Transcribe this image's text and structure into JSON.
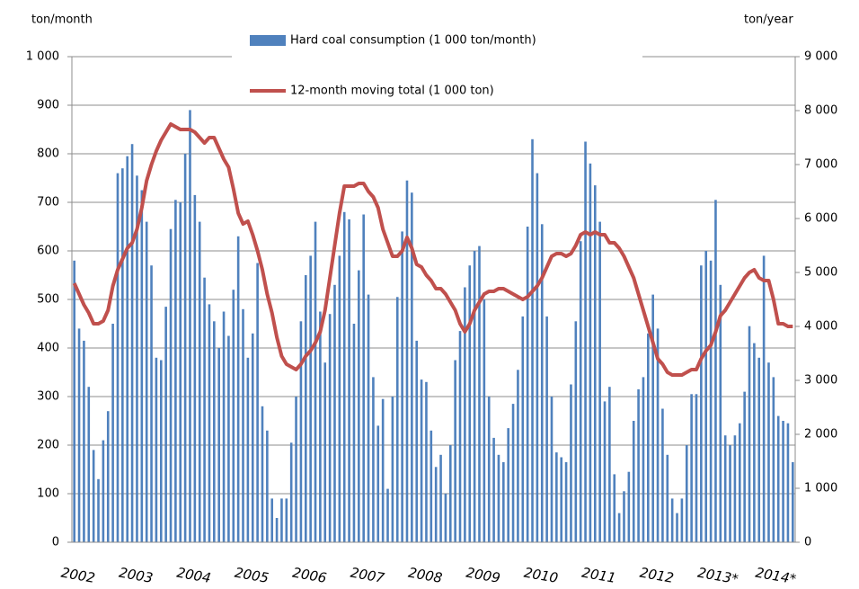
{
  "chart_data": {
    "type": "bar-line",
    "y_label": "ton/month",
    "y2_label": "ton/year",
    "categories": [
      "2002",
      null,
      null,
      null,
      null,
      null,
      null,
      null,
      null,
      null,
      null,
      null,
      "2003",
      null,
      null,
      null,
      null,
      null,
      null,
      null,
      null,
      null,
      null,
      null,
      "2004",
      null,
      null,
      null,
      null,
      null,
      null,
      null,
      null,
      null,
      null,
      null,
      "2005",
      null,
      null,
      null,
      null,
      null,
      null,
      null,
      null,
      null,
      null,
      null,
      "2006",
      null,
      null,
      null,
      null,
      null,
      null,
      null,
      null,
      null,
      null,
      null,
      "2007",
      null,
      null,
      null,
      null,
      null,
      null,
      null,
      null,
      null,
      null,
      null,
      "2008",
      null,
      null,
      null,
      null,
      null,
      null,
      null,
      null,
      null,
      null,
      null,
      "2009",
      null,
      null,
      null,
      null,
      null,
      null,
      null,
      null,
      null,
      null,
      null,
      "2010",
      null,
      null,
      null,
      null,
      null,
      null,
      null,
      null,
      null,
      null,
      null,
      "2011",
      null,
      null,
      null,
      null,
      null,
      null,
      null,
      null,
      null,
      null,
      null,
      "2012",
      null,
      null,
      null,
      null,
      null,
      null,
      null,
      null,
      null,
      null,
      null,
      "2013*",
      null,
      null,
      null,
      null,
      null,
      null,
      null,
      null,
      null,
      null,
      null,
      "2014*",
      null,
      null,
      null,
      null,
      null
    ],
    "series": [
      {
        "name": "Hard coal consumption (1 000 ton/month)",
        "type": "bar",
        "color": "#4f81bd",
        "values": [
          580,
          440,
          415,
          320,
          190,
          130,
          210,
          270,
          450,
          760,
          770,
          795,
          820,
          755,
          725,
          660,
          570,
          380,
          375,
          485,
          645,
          705,
          700,
          800,
          890,
          715,
          660,
          545,
          490,
          455,
          400,
          475,
          425,
          520,
          630,
          480,
          380,
          430,
          575,
          280,
          230,
          90,
          50,
          90,
          90,
          205,
          300,
          455,
          550,
          590,
          660,
          475,
          370,
          470,
          530,
          590,
          680,
          665,
          450,
          560,
          675,
          510,
          340,
          240,
          295,
          110,
          300,
          505,
          640,
          745,
          720,
          415,
          335,
          330,
          230,
          155,
          180,
          100,
          200,
          375,
          435,
          525,
          570,
          600,
          610,
          500,
          300,
          215,
          180,
          165,
          235,
          285,
          355,
          465,
          650,
          830,
          760,
          655,
          465,
          300,
          185,
          175,
          165,
          325,
          455,
          620,
          825,
          780,
          735,
          660,
          290,
          320,
          140,
          60,
          105,
          145,
          250,
          315,
          340,
          430,
          510,
          440,
          275,
          180,
          90,
          60,
          90,
          200,
          305,
          305,
          570,
          600,
          580,
          705,
          530,
          220,
          200,
          220,
          245,
          310,
          445,
          410,
          380,
          590,
          370,
          340,
          260,
          250,
          245,
          165
        ]
      },
      {
        "name": "12-month moving total (1 000 ton)",
        "type": "line",
        "axis": "y2",
        "color": "#c0504d",
        "values": [
          4800,
          4600,
          4400,
          4250,
          4050,
          4050,
          4100,
          4300,
          4750,
          5050,
          5250,
          5450,
          5550,
          5800,
          6200,
          6700,
          7000,
          7250,
          7450,
          7600,
          7750,
          7700,
          7650,
          7650,
          7650,
          7600,
          7500,
          7400,
          7500,
          7500,
          7300,
          7100,
          6950,
          6550,
          6100,
          5900,
          5950,
          5700,
          5400,
          5050,
          4600,
          4250,
          3800,
          3450,
          3300,
          3250,
          3200,
          3300,
          3450,
          3550,
          3700,
          3900,
          4300,
          4900,
          5500,
          6100,
          6600,
          6600,
          6600,
          6650,
          6650,
          6500,
          6400,
          6200,
          5800,
          5550,
          5300,
          5300,
          5400,
          5650,
          5450,
          5150,
          5100,
          4950,
          4850,
          4700,
          4700,
          4600,
          4450,
          4300,
          4050,
          3900,
          4050,
          4300,
          4450,
          4600,
          4650,
          4650,
          4700,
          4700,
          4650,
          4600,
          4550,
          4500,
          4550,
          4650,
          4750,
          4900,
          5100,
          5300,
          5350,
          5350,
          5300,
          5350,
          5500,
          5700,
          5750,
          5700,
          5750,
          5700,
          5700,
          5550,
          5550,
          5450,
          5300,
          5100,
          4900,
          4600,
          4300,
          4000,
          3700,
          3400,
          3300,
          3150,
          3100,
          3100,
          3100,
          3150,
          3200,
          3200,
          3400,
          3550,
          3650,
          3900,
          4200,
          4300,
          4450,
          4600,
          4750,
          4900,
          5000,
          5050,
          4900,
          4850,
          4850,
          4500,
          4050,
          4050,
          4000,
          4000
        ]
      }
    ],
    "ylim": [
      0,
      1000
    ],
    "yticks": [
      0,
      100,
      200,
      300,
      400,
      500,
      600,
      700,
      800,
      900,
      {
        "value": 1000,
        "label": "1 000"
      }
    ],
    "y2lim": [
      0,
      9000
    ],
    "y2ticks": [
      0,
      {
        "value": 1000,
        "label": "1 000"
      },
      {
        "value": 2000,
        "label": "2 000"
      },
      {
        "value": 3000,
        "label": "3 000"
      },
      {
        "value": 4000,
        "label": "4 000"
      },
      {
        "value": 5000,
        "label": "5 000"
      },
      {
        "value": 6000,
        "label": "6 000"
      },
      {
        "value": 7000,
        "label": "7 000"
      },
      {
        "value": 8000,
        "label": "8 000"
      },
      {
        "value": 9000,
        "label": "9 000"
      }
    ],
    "grid": true
  }
}
